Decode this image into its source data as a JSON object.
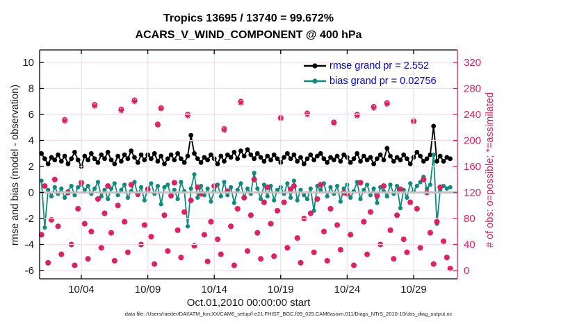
{
  "header": {
    "title_line1": "Tropics 13695 / 13740 = 99.672%",
    "title_line2": "ACARS_V_WIND_COMPONENT @ 400 hPa"
  },
  "footer": {
    "data_file": "data file: /Users/raeder/DAI/ATM_forcXX/CAM6_setup/f.e21.FHIST_BGC.f09_025.CAM6assim.011/Diags_NTrS_2010-10/obs_diag_output.nc"
  },
  "legend": {
    "items": [
      {
        "label": "rmse grand pr = 2.552",
        "series": "rmse"
      },
      {
        "label": "bias grand pr = 0.02756",
        "series": "bias"
      }
    ]
  },
  "colors": {
    "rmse": "#000000",
    "bias": "#0e8b80",
    "obs": "#e21c5c",
    "legend_text": "#0000ee",
    "grid_h": "#f6dce6",
    "grid_v": "#e9e2e4",
    "zero_line": "#c2c2c2",
    "axis_black": "#000000"
  },
  "chart_data": {
    "type": "line",
    "title": "Tropics 13695 / 13740 = 99.672%",
    "subtitle": "ACARS_V_WIND_COMPONENT @ 400 hPa",
    "xlabel": "Oct.01,2010 00:00:00 start",
    "ylabel_left": "rmse and bias (model - observation)",
    "ylabel_right": "# of obs: o=possible; *=assimilated",
    "ylim_left": [
      -6,
      10
    ],
    "ylim_right": [
      0,
      320
    ],
    "yticks_left": [
      -6,
      -4,
      -2,
      0,
      2,
      4,
      6,
      8,
      10
    ],
    "yticks_right": [
      0,
      40,
      80,
      120,
      160,
      200,
      240,
      280,
      320
    ],
    "x_start_days": 0,
    "x_step_days": 0.25,
    "x_tick_days": [
      3,
      8,
      13,
      18,
      23,
      28
    ],
    "x_tick_labels": [
      "10/04",
      "10/09",
      "10/14",
      "10/19",
      "10/24",
      "10/29"
    ],
    "grid": true,
    "legend_position": "upper-right-inside",
    "grand": {
      "rmse": 2.552,
      "bias": 0.02756,
      "possible": 13740,
      "assimilated": 13695
    },
    "series": [
      {
        "name": "rmse",
        "axis": "left",
        "style": "line-dot",
        "color_key": "rmse",
        "values": [
          3.0,
          2.6,
          2.2,
          2.7,
          2.5,
          2.9,
          2.4,
          2.8,
          2.2,
          2.6,
          3.1,
          2.5,
          2.0,
          2.8,
          2.5,
          3.0,
          2.6,
          2.3,
          2.9,
          2.6,
          3.1,
          2.5,
          2.2,
          2.8,
          2.4,
          2.9,
          2.6,
          3.2,
          2.7,
          2.3,
          2.9,
          2.5,
          2.9,
          2.6,
          3.0,
          2.4,
          2.8,
          2.2,
          2.6,
          2.9,
          2.5,
          3.0,
          2.6,
          2.3,
          2.8,
          4.4,
          3.0,
          2.6,
          2.3,
          2.7,
          2.5,
          2.9,
          2.6,
          2.2,
          2.8,
          2.4,
          2.9,
          2.7,
          3.1,
          2.6,
          3.2,
          2.8,
          3.3,
          2.9,
          2.6,
          3.0,
          2.7,
          2.4,
          2.8,
          2.5,
          2.9,
          2.6,
          2.3,
          2.7,
          3.0,
          2.6,
          2.9,
          2.4,
          2.7,
          2.2,
          2.6,
          2.9,
          2.5,
          2.8,
          3.0,
          2.6,
          2.3,
          2.7,
          2.5,
          2.8,
          2.4,
          2.9,
          2.7,
          2.3,
          2.6,
          3.0,
          2.4,
          2.8,
          2.5,
          2.7,
          2.2,
          2.6,
          2.9,
          2.5,
          3.4,
          2.8,
          2.4,
          2.7,
          2.5,
          2.9,
          2.6,
          2.2,
          2.7,
          3.1,
          2.8,
          2.4,
          2.6,
          2.9,
          5.1,
          2.4,
          2.8,
          2.4,
          2.7,
          2.6
        ]
      },
      {
        "name": "bias",
        "axis": "left",
        "style": "line-dot",
        "color_key": "bias",
        "values": [
          0.9,
          -2.7,
          0.2,
          -0.3,
          0.4,
          -0.1,
          0.3,
          -0.4,
          0.1,
          0.5,
          -0.2,
          0.4,
          0.6,
          0.2,
          0.5,
          -0.1,
          0.3,
          0.8,
          -0.3,
          0.2,
          -0.5,
          0.3,
          0.7,
          -0.2,
          0.2,
          0.6,
          -0.4,
          0.1,
          0.8,
          -0.2,
          0.4,
          -0.6,
          0.3,
          0.7,
          -0.1,
          0.5,
          -0.9,
          0.4,
          0.6,
          -0.3,
          0.2,
          -0.5,
          0.8,
          0.1,
          -2.6,
          0.3,
          1.4,
          -0.4,
          0.5,
          -0.2,
          0.3,
          -0.7,
          0.1,
          0.6,
          -0.3,
          0.8,
          -0.2,
          0.4,
          -0.8,
          0.2,
          0.7,
          -0.4,
          0.3,
          -0.1,
          1.5,
          0.3,
          -0.5,
          0.6,
          -0.3,
          0.5,
          -0.6,
          0.2,
          0.4,
          -0.1,
          0.7,
          -0.4,
          0.9,
          -0.6,
          0.2,
          -0.2,
          -0.5,
          0.3,
          -1.4,
          0.5,
          0.2,
          0.7,
          -0.3,
          0.4,
          -0.1,
          0.5,
          -0.7,
          0.3,
          0.6,
          -0.4,
          0.1,
          0.8,
          -0.5,
          0.2,
          0.6,
          -0.2,
          0.3,
          -0.8,
          0.4,
          0.1,
          -0.3,
          0.6,
          -0.1,
          0.5,
          -1.2,
          0.2,
          -0.4,
          0.7,
          0.1,
          0.5,
          0.8,
          1.2,
          0.3,
          0.6,
          2.9,
          -2.4,
          0.2,
          0.5,
          0.3,
          0.4
        ]
      },
      {
        "name": "possible",
        "axis": "right",
        "style": "marker-o",
        "color_key": "obs",
        "values": [
          55,
          130,
          12,
          78,
          140,
          68,
          25,
          232,
          120,
          40,
          8,
          95,
          135,
          72,
          18,
          60,
          255,
          110,
          35,
          88,
          130,
          58,
          15,
          100,
          248,
          75,
          28,
          132,
          262,
          118,
          40,
          70,
          125,
          52,
          10,
          225,
          250,
          85,
          30,
          115,
          135,
          62,
          20,
          90,
          240,
          108,
          38,
          128,
          118,
          55,
          14,
          75,
          130,
          48,
          25,
          218,
          122,
          68,
          8,
          95,
          260,
          112,
          30,
          85,
          140,
          58,
          18,
          105,
          128,
          72,
          22,
          92,
          235,
          105,
          35,
          125,
          130,
          50,
          12,
          80,
          242,
          88,
          28,
          110,
          132,
          60,
          15,
          95,
          228,
          70,
          32,
          120,
          118,
          55,
          8,
          240,
          135,
          75,
          25,
          90,
          252,
          115,
          40,
          130,
          258,
          62,
          18,
          85,
          125,
          48,
          28,
          105,
          230,
          95,
          35,
          140,
          120,
          58,
          10,
          75,
          128,
          45,
          20,
          3
        ]
      },
      {
        "name": "assimilated",
        "axis": "right",
        "style": "marker-star",
        "color_key": "obs",
        "values": [
          55,
          130,
          12,
          78,
          140,
          68,
          25,
          230,
          120,
          40,
          8,
          95,
          135,
          72,
          18,
          60,
          253,
          110,
          35,
          88,
          130,
          58,
          15,
          100,
          246,
          75,
          28,
          132,
          260,
          118,
          40,
          70,
          125,
          52,
          10,
          224,
          249,
          85,
          30,
          115,
          135,
          62,
          20,
          90,
          238,
          108,
          38,
          128,
          118,
          55,
          14,
          75,
          130,
          48,
          25,
          216,
          122,
          68,
          8,
          95,
          258,
          112,
          30,
          85,
          140,
          58,
          18,
          105,
          128,
          72,
          22,
          92,
          234,
          105,
          35,
          125,
          130,
          50,
          12,
          80,
          240,
          88,
          28,
          110,
          132,
          60,
          15,
          95,
          227,
          70,
          32,
          120,
          118,
          55,
          8,
          238,
          135,
          75,
          25,
          90,
          250,
          115,
          40,
          130,
          256,
          62,
          18,
          85,
          125,
          48,
          28,
          105,
          229,
          95,
          35,
          140,
          120,
          58,
          10,
          75,
          128,
          45,
          20,
          3
        ]
      }
    ]
  }
}
